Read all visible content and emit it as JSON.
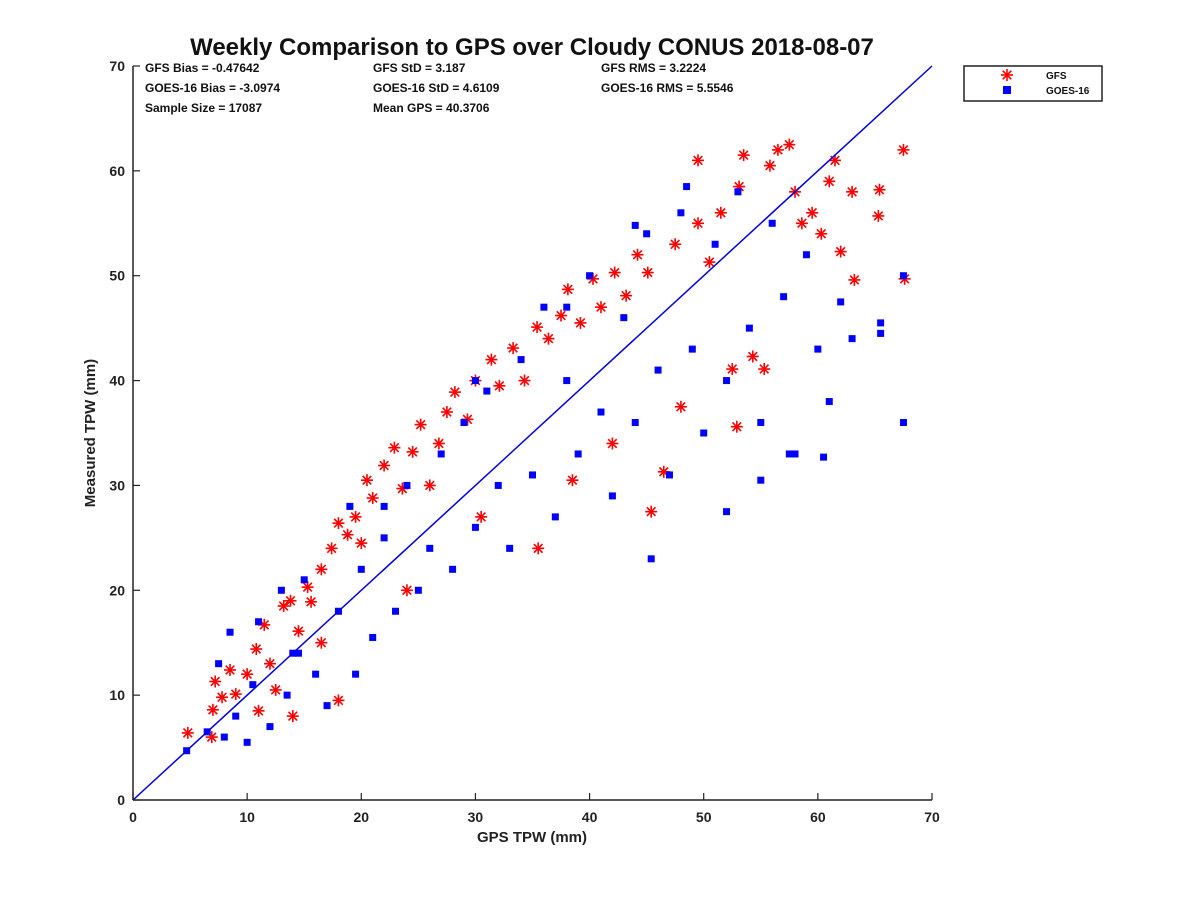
{
  "chart_data": {
    "type": "scatter",
    "title": "Weekly Comparison to GPS over Cloudy CONUS 2018-08-07",
    "xlabel": "GPS TPW (mm)",
    "ylabel": "Measured TPW (mm)",
    "xlim": [
      0,
      70
    ],
    "ylim": [
      0,
      70
    ],
    "xticks": [
      0,
      10,
      20,
      30,
      40,
      50,
      60,
      70
    ],
    "yticks": [
      0,
      10,
      20,
      30,
      40,
      50,
      60,
      70
    ],
    "grid": false,
    "legend_position": "outside top-right",
    "reference_line": {
      "from": [
        0,
        0
      ],
      "to": [
        70,
        70
      ],
      "color": "#0000e0"
    },
    "stats": [
      [
        "GFS Bias = -0.47642",
        "GFS StD = 3.187",
        "GFS RMS = 3.2224"
      ],
      [
        "GOES-16 Bias = -3.0974",
        "GOES-16 StD = 4.6109",
        "GOES-16 RMS = 5.5546"
      ],
      [
        "Sample Size = 17087",
        "Mean GPS = 40.3706"
      ]
    ],
    "series": [
      {
        "name": "GFS",
        "marker": "asterisk",
        "color": "#ff0000",
        "points": [
          [
            4.8,
            6.4
          ],
          [
            6.9,
            6.0
          ],
          [
            7.0,
            8.6
          ],
          [
            7.2,
            11.3
          ],
          [
            7.8,
            9.8
          ],
          [
            8.5,
            12.4
          ],
          [
            9.0,
            10.1
          ],
          [
            10.0,
            12.0
          ],
          [
            10.8,
            14.4
          ],
          [
            11.5,
            16.7
          ],
          [
            12.0,
            13.0
          ],
          [
            12.5,
            10.5
          ],
          [
            13.2,
            18.5
          ],
          [
            13.8,
            19.0
          ],
          [
            14.5,
            16.1
          ],
          [
            15.3,
            20.3
          ],
          [
            15.6,
            18.9
          ],
          [
            16.5,
            22.0
          ],
          [
            17.4,
            24.0
          ],
          [
            18.0,
            26.4
          ],
          [
            18.8,
            25.3
          ],
          [
            19.5,
            27.0
          ],
          [
            20.5,
            30.5
          ],
          [
            21.0,
            28.8
          ],
          [
            22.0,
            31.9
          ],
          [
            22.9,
            33.6
          ],
          [
            23.6,
            29.7
          ],
          [
            24.5,
            33.2
          ],
          [
            25.2,
            35.8
          ],
          [
            26.8,
            34.0
          ],
          [
            27.5,
            37.0
          ],
          [
            28.2,
            38.9
          ],
          [
            29.3,
            36.3
          ],
          [
            30.0,
            40.0
          ],
          [
            31.4,
            42.0
          ],
          [
            32.1,
            39.5
          ],
          [
            33.3,
            43.1
          ],
          [
            34.3,
            40.0
          ],
          [
            35.4,
            45.1
          ],
          [
            36.4,
            44.0
          ],
          [
            37.5,
            46.2
          ],
          [
            38.1,
            48.7
          ],
          [
            39.2,
            45.5
          ],
          [
            40.3,
            49.7
          ],
          [
            41.0,
            47.0
          ],
          [
            42.2,
            50.3
          ],
          [
            43.2,
            48.1
          ],
          [
            44.2,
            52.0
          ],
          [
            45.1,
            50.3
          ],
          [
            45.4,
            27.5
          ],
          [
            46.5,
            31.3
          ],
          [
            47.5,
            53.0
          ],
          [
            48.0,
            37.5
          ],
          [
            49.5,
            55.0
          ],
          [
            50.5,
            51.3
          ],
          [
            51.5,
            56.0
          ],
          [
            52.5,
            41.1
          ],
          [
            52.9,
            35.6
          ],
          [
            53.1,
            58.5
          ],
          [
            53.5,
            61.5
          ],
          [
            54.3,
            42.3
          ],
          [
            55.3,
            41.1
          ],
          [
            55.8,
            60.5
          ],
          [
            56.5,
            62.0
          ],
          [
            57.5,
            62.5
          ],
          [
            58.0,
            58.0
          ],
          [
            58.6,
            55.0
          ],
          [
            59.5,
            56.0
          ],
          [
            60.3,
            54.0
          ],
          [
            61.0,
            59.0
          ],
          [
            61.5,
            61.0
          ],
          [
            62.0,
            52.3
          ],
          [
            63.0,
            58.0
          ],
          [
            63.2,
            49.6
          ],
          [
            65.4,
            58.2
          ],
          [
            65.3,
            55.7
          ],
          [
            67.5,
            62.0
          ],
          [
            67.6,
            49.7
          ],
          [
            49.5,
            61.0
          ],
          [
            35.5,
            24.0
          ],
          [
            30.5,
            27.0
          ],
          [
            26.0,
            30.0
          ],
          [
            20.0,
            24.5
          ],
          [
            16.5,
            15.0
          ],
          [
            11.0,
            8.5
          ],
          [
            14.0,
            8.0
          ],
          [
            18.0,
            9.5
          ],
          [
            24.0,
            20.0
          ],
          [
            42.0,
            34.0
          ],
          [
            38.5,
            30.5
          ]
        ]
      },
      {
        "name": "GOES-16",
        "marker": "square",
        "color": "#0000ff",
        "points": [
          [
            4.7,
            4.7
          ],
          [
            6.5,
            6.5
          ],
          [
            7.5,
            13.0
          ],
          [
            8.0,
            6.0
          ],
          [
            8.5,
            16.0
          ],
          [
            9.0,
            8.0
          ],
          [
            10.0,
            5.5
          ],
          [
            10.5,
            11.0
          ],
          [
            11.0,
            17.0
          ],
          [
            12.0,
            7.0
          ],
          [
            13.0,
            20.0
          ],
          [
            13.5,
            10.0
          ],
          [
            14.5,
            14.0
          ],
          [
            15.0,
            21.0
          ],
          [
            16.0,
            12.0
          ],
          [
            17.0,
            9.0
          ],
          [
            18.0,
            18.0
          ],
          [
            19.0,
            28.0
          ],
          [
            19.5,
            12.0
          ],
          [
            20.0,
            22.0
          ],
          [
            21.0,
            15.5
          ],
          [
            22.0,
            25.0
          ],
          [
            23.0,
            18.0
          ],
          [
            24.0,
            30.0
          ],
          [
            25.0,
            20.0
          ],
          [
            26.0,
            24.0
          ],
          [
            27.0,
            33.0
          ],
          [
            28.0,
            22.0
          ],
          [
            29.0,
            36.0
          ],
          [
            30.0,
            26.0
          ],
          [
            31.0,
            39.0
          ],
          [
            32.0,
            30.0
          ],
          [
            33.0,
            24.0
          ],
          [
            34.0,
            42.0
          ],
          [
            35.0,
            31.0
          ],
          [
            36.0,
            47.0
          ],
          [
            37.0,
            27.0
          ],
          [
            38.0,
            40.0
          ],
          [
            39.0,
            33.0
          ],
          [
            40.0,
            50.0
          ],
          [
            41.0,
            37.0
          ],
          [
            42.0,
            29.0
          ],
          [
            43.0,
            46.0
          ],
          [
            44.0,
            36.0
          ],
          [
            45.0,
            54.0
          ],
          [
            45.4,
            23.0
          ],
          [
            46.0,
            41.0
          ],
          [
            47.0,
            31.0
          ],
          [
            48.0,
            56.0
          ],
          [
            49.0,
            43.0
          ],
          [
            50.0,
            35.0
          ],
          [
            51.0,
            53.0
          ],
          [
            52.0,
            40.0
          ],
          [
            52.0,
            27.5
          ],
          [
            53.0,
            58.0
          ],
          [
            54.0,
            45.0
          ],
          [
            55.0,
            36.0
          ],
          [
            56.0,
            55.0
          ],
          [
            57.0,
            48.0
          ],
          [
            58.0,
            33.0
          ],
          [
            59.0,
            52.0
          ],
          [
            60.0,
            43.0
          ],
          [
            60.5,
            32.7
          ],
          [
            61.0,
            38.0
          ],
          [
            62.0,
            47.5
          ],
          [
            63.0,
            44.0
          ],
          [
            65.5,
            45.5
          ],
          [
            65.5,
            44.5
          ],
          [
            67.5,
            36.0
          ],
          [
            67.5,
            50.0
          ],
          [
            48.5,
            58.5
          ],
          [
            44.0,
            54.8
          ],
          [
            38.0,
            47.0
          ],
          [
            30.0,
            40.0
          ],
          [
            22.0,
            28.0
          ],
          [
            14.0,
            14.0
          ],
          [
            55.0,
            30.5
          ],
          [
            57.5,
            33.0
          ]
        ]
      }
    ]
  }
}
